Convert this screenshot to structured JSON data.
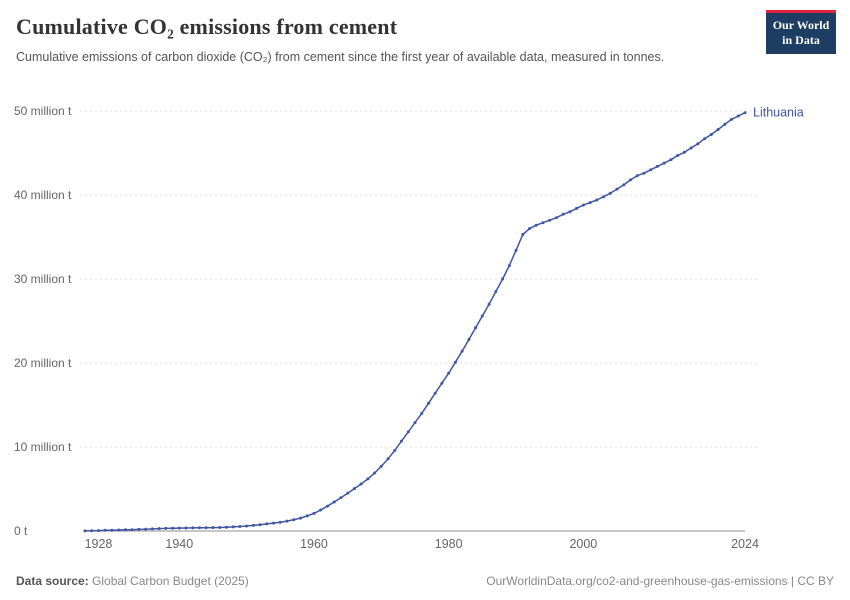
{
  "header": {
    "title": "Cumulative CO₂ emissions from cement",
    "subtitle": "Cumulative emissions of carbon dioxide (CO₂) from cement since the first year of available data, measured in tonnes.",
    "logo": {
      "line1": "Our World",
      "line2": "in Data"
    }
  },
  "footer": {
    "source_label": "Data source:",
    "source": " Global Carbon Budget (2025)",
    "attribution": "OurWorldinData.org/co2-and-greenhouse-gas-emissions | CC BY"
  },
  "chart_data": {
    "type": "line",
    "title": "Cumulative CO₂ emissions from cement",
    "entity": "Lithuania",
    "unit": "million t",
    "ylabel": "",
    "xlabel": "",
    "ylim": [
      0,
      50
    ],
    "yticks": [
      0,
      10,
      20,
      30,
      40,
      50
    ],
    "ytick_labels": [
      "0 t",
      "10 million t",
      "20 million t",
      "30 million t",
      "40 million t",
      "50 million t"
    ],
    "xticks": [
      1928,
      1940,
      1960,
      1980,
      2000,
      2024
    ],
    "grid": true,
    "legend_position": "end-of-line",
    "line_color": "#4056a3",
    "grid_color": "#dcdcdc",
    "axis_color": "#8f8f8f",
    "tick_text_color": "#666666",
    "x": [
      1926,
      1927,
      1928,
      1929,
      1930,
      1931,
      1932,
      1933,
      1934,
      1935,
      1936,
      1937,
      1938,
      1939,
      1940,
      1941,
      1942,
      1943,
      1944,
      1945,
      1946,
      1947,
      1948,
      1949,
      1950,
      1951,
      1952,
      1953,
      1954,
      1955,
      1956,
      1957,
      1958,
      1959,
      1960,
      1961,
      1962,
      1963,
      1964,
      1965,
      1966,
      1967,
      1968,
      1969,
      1970,
      1971,
      1972,
      1973,
      1974,
      1975,
      1976,
      1977,
      1978,
      1979,
      1980,
      1981,
      1982,
      1983,
      1984,
      1985,
      1986,
      1987,
      1988,
      1989,
      1990,
      1991,
      1992,
      1993,
      1994,
      1995,
      1996,
      1997,
      1998,
      1999,
      2000,
      2001,
      2002,
      2003,
      2004,
      2005,
      2006,
      2007,
      2008,
      2009,
      2010,
      2011,
      2012,
      2013,
      2014,
      2015,
      2016,
      2017,
      2018,
      2019,
      2020,
      2021,
      2022,
      2023,
      2024
    ],
    "values": [
      0.01,
      0.03,
      0.05,
      0.08,
      0.1,
      0.12,
      0.14,
      0.16,
      0.19,
      0.22,
      0.25,
      0.28,
      0.31,
      0.33,
      0.35,
      0.36,
      0.37,
      0.38,
      0.39,
      0.4,
      0.42,
      0.45,
      0.49,
      0.54,
      0.6,
      0.67,
      0.75,
      0.84,
      0.94,
      1.05,
      1.18,
      1.34,
      1.54,
      1.8,
      2.1,
      2.5,
      2.95,
      3.45,
      3.95,
      4.5,
      5.05,
      5.6,
      6.2,
      6.9,
      7.7,
      8.6,
      9.6,
      10.7,
      11.8,
      12.9,
      14.0,
      15.2,
      16.4,
      17.6,
      18.8,
      20.1,
      21.4,
      22.8,
      24.2,
      25.6,
      27.0,
      28.5,
      30.0,
      31.6,
      33.4,
      35.3,
      36.0,
      36.4,
      36.7,
      37.0,
      37.3,
      37.7,
      38.0,
      38.4,
      38.8,
      39.1,
      39.4,
      39.8,
      40.2,
      40.7,
      41.2,
      41.8,
      42.3,
      42.6,
      43.0,
      43.4,
      43.8,
      44.2,
      44.7,
      45.1,
      45.6,
      46.1,
      46.7,
      47.2,
      47.8,
      48.4,
      49.0,
      49.4,
      49.8
    ]
  }
}
